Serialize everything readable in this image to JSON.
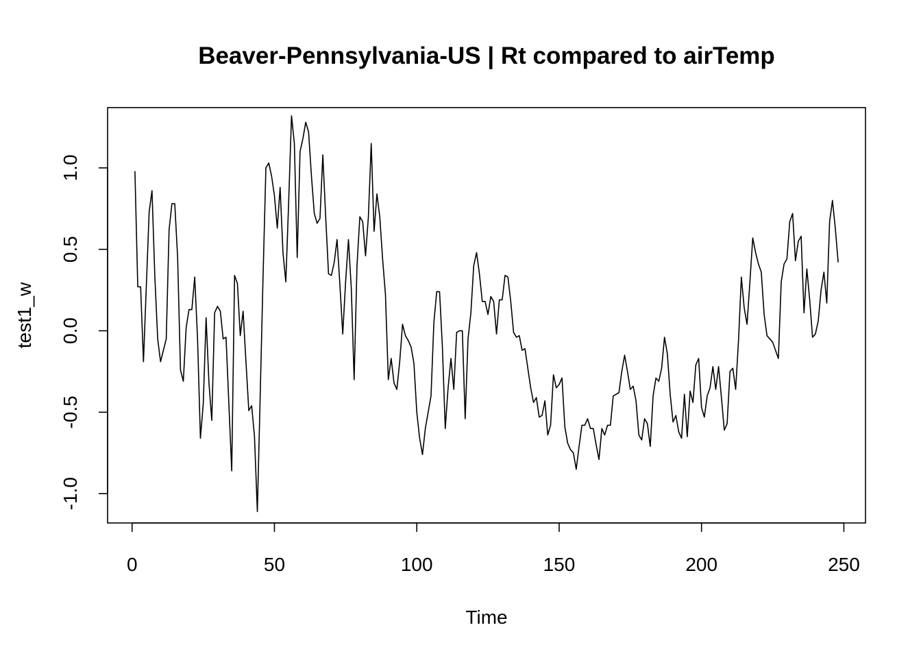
{
  "chart_data": {
    "type": "line",
    "title": "Beaver-Pennsylvania-US | Rt compared to airTemp",
    "xlabel": "Time",
    "ylabel": "test1_w",
    "xlim": [
      -8.6,
      257.6
    ],
    "ylim": [
      -1.18,
      1.37
    ],
    "x_ticks": [
      0,
      50,
      100,
      150,
      200,
      250
    ],
    "x_tick_labels": [
      "0",
      "50",
      "100",
      "150",
      "200",
      "250"
    ],
    "y_ticks": [
      -1.0,
      -0.5,
      0.0,
      0.5,
      1.0
    ],
    "y_tick_labels": [
      "-1.0",
      "-0.5",
      "0.0",
      "0.5",
      "1.0"
    ],
    "grid": false,
    "legend": "none",
    "series": [
      {
        "name": "",
        "x_start": 1,
        "values": [
          0.98,
          0.27,
          0.27,
          -0.19,
          0.27,
          0.73,
          0.86,
          0.33,
          -0.05,
          -0.19,
          -0.12,
          -0.05,
          0.62,
          0.78,
          0.78,
          0.45,
          -0.24,
          -0.31,
          0.02,
          0.13,
          0.13,
          0.33,
          -0.05,
          -0.66,
          -0.45,
          0.08,
          -0.32,
          -0.55,
          0.11,
          0.15,
          0.12,
          -0.05,
          -0.04,
          -0.45,
          -0.86,
          0.34,
          0.29,
          -0.03,
          0.12,
          -0.19,
          -0.49,
          -0.46,
          -0.65,
          -1.11,
          -0.4,
          0.33,
          1.0,
          1.03,
          0.95,
          0.83,
          0.63,
          0.88,
          0.48,
          0.3,
          0.79,
          1.32,
          1.15,
          0.45,
          1.1,
          1.18,
          1.28,
          1.22,
          0.95,
          0.72,
          0.66,
          0.69,
          1.08,
          0.7,
          0.35,
          0.34,
          0.42,
          0.56,
          0.28,
          -0.02,
          0.3,
          0.56,
          0.26,
          -0.3,
          0.4,
          0.7,
          0.67,
          0.46,
          0.7,
          1.15,
          0.61,
          0.84,
          0.7,
          0.44,
          0.22,
          -0.3,
          -0.17,
          -0.32,
          -0.36,
          -0.19,
          0.04,
          -0.03,
          -0.06,
          -0.1,
          -0.2,
          -0.5,
          -0.66,
          -0.76,
          -0.6,
          -0.5,
          -0.4,
          0.05,
          0.24,
          0.24,
          -0.1,
          -0.6,
          -0.35,
          -0.17,
          -0.36,
          -0.01,
          0.0,
          0.0,
          -0.54,
          -0.05,
          0.11,
          0.4,
          0.48,
          0.35,
          0.18,
          0.18,
          0.1,
          0.21,
          0.18,
          -0.02,
          0.19,
          0.19,
          0.34,
          0.33,
          0.18,
          -0.01,
          -0.04,
          -0.03,
          -0.12,
          -0.11,
          -0.23,
          -0.35,
          -0.44,
          -0.41,
          -0.53,
          -0.52,
          -0.43,
          -0.64,
          -0.58,
          -0.27,
          -0.35,
          -0.33,
          -0.29,
          -0.59,
          -0.69,
          -0.73,
          -0.75,
          -0.85,
          -0.71,
          -0.58,
          -0.58,
          -0.54,
          -0.6,
          -0.6,
          -0.7,
          -0.79,
          -0.6,
          -0.64,
          -0.58,
          -0.58,
          -0.4,
          -0.39,
          -0.38,
          -0.25,
          -0.15,
          -0.25,
          -0.36,
          -0.34,
          -0.43,
          -0.64,
          -0.67,
          -0.54,
          -0.57,
          -0.71,
          -0.4,
          -0.29,
          -0.31,
          -0.23,
          -0.04,
          -0.14,
          -0.39,
          -0.56,
          -0.52,
          -0.62,
          -0.66,
          -0.39,
          -0.65,
          -0.37,
          -0.44,
          -0.21,
          -0.17,
          -0.47,
          -0.53,
          -0.4,
          -0.35,
          -0.22,
          -0.36,
          -0.22,
          -0.41,
          -0.61,
          -0.57,
          -0.25,
          -0.23,
          -0.36,
          -0.06,
          0.33,
          0.14,
          0.04,
          0.3,
          0.57,
          0.48,
          0.41,
          0.36,
          0.1,
          -0.03,
          -0.05,
          -0.07,
          -0.12,
          -0.17,
          0.3,
          0.41,
          0.44,
          0.67,
          0.72,
          0.43,
          0.55,
          0.58,
          0.11,
          0.38,
          0.19,
          -0.04,
          -0.02,
          0.06,
          0.25,
          0.36,
          0.17,
          0.67,
          0.8,
          0.63,
          0.42
        ]
      }
    ]
  }
}
